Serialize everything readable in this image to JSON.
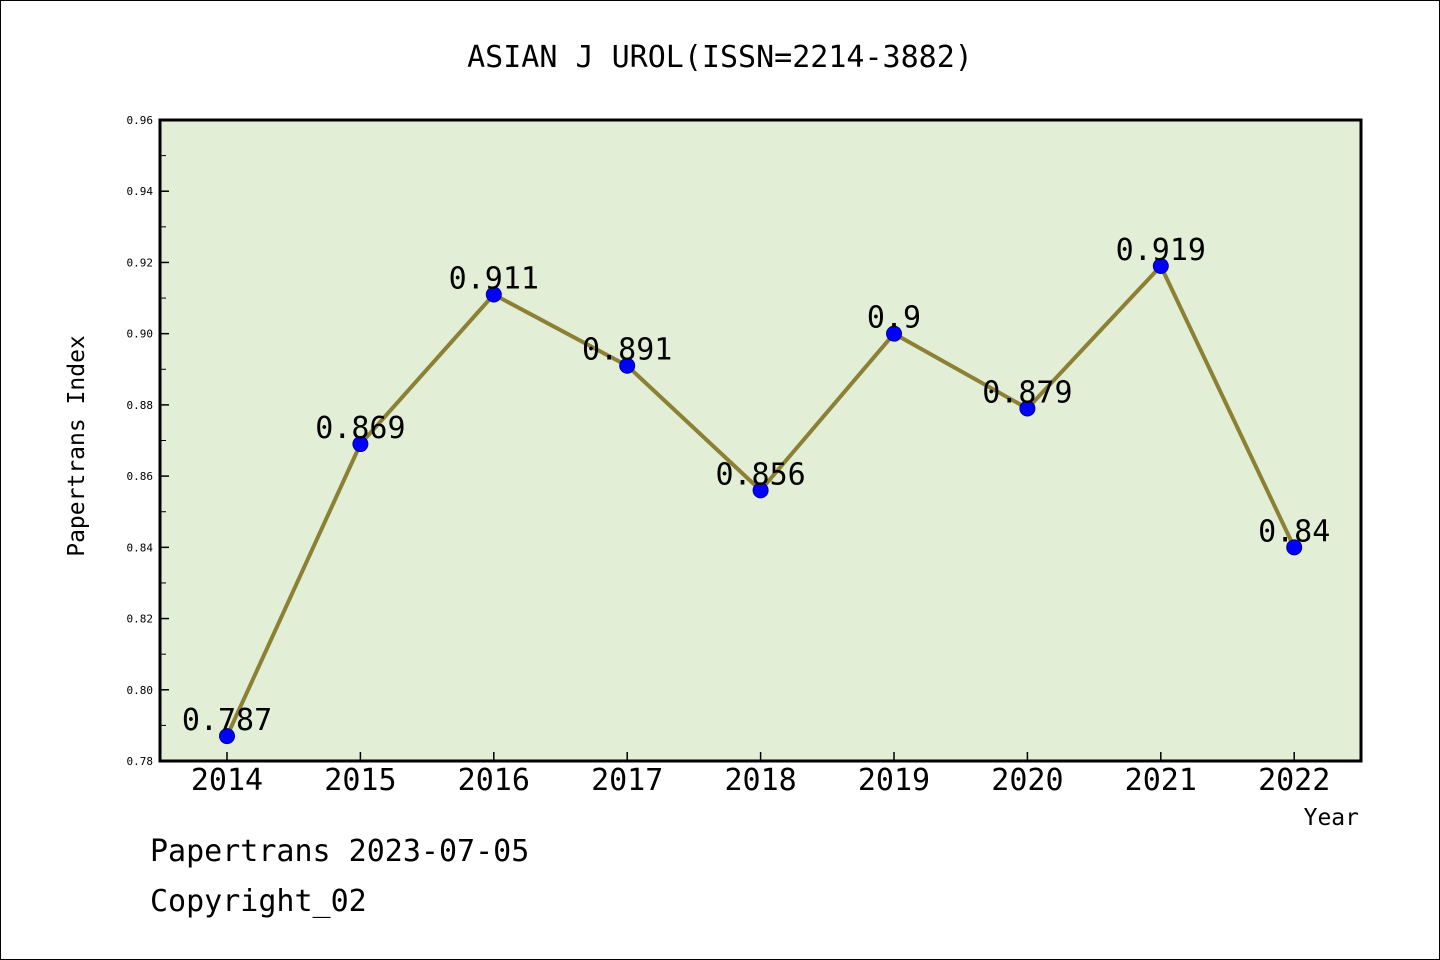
{
  "chart_data": {
    "type": "line",
    "title": "ASIAN J UROL(ISSN=2214-3882)",
    "xlabel": "Year",
    "ylabel": "Papertrans Index",
    "categories": [
      "2014",
      "2015",
      "2016",
      "2017",
      "2018",
      "2019",
      "2020",
      "2021",
      "2022"
    ],
    "series": [
      {
        "values": [
          0.787,
          0.869,
          0.911,
          0.891,
          0.856,
          0.9,
          0.879,
          0.919,
          0.84
        ],
        "labels": [
          "0.787",
          "0.869",
          "0.911",
          "0.891",
          "0.856",
          "0.9",
          "0.879",
          "0.919",
          "0.84"
        ]
      }
    ],
    "ylim": [
      0.78,
      0.96
    ],
    "yticks": [
      "0.78",
      "0.80",
      "0.82",
      "0.84",
      "0.86",
      "0.88",
      "0.90",
      "0.92",
      "0.94",
      "0.96"
    ],
    "grid": false,
    "colors": {
      "plot_background": "#e2efd6",
      "line": "#8b8033",
      "marker": "#0000ff"
    }
  },
  "footer": {
    "line1": "Papertrans 2023-07-05",
    "line2": "Copyright_02"
  }
}
